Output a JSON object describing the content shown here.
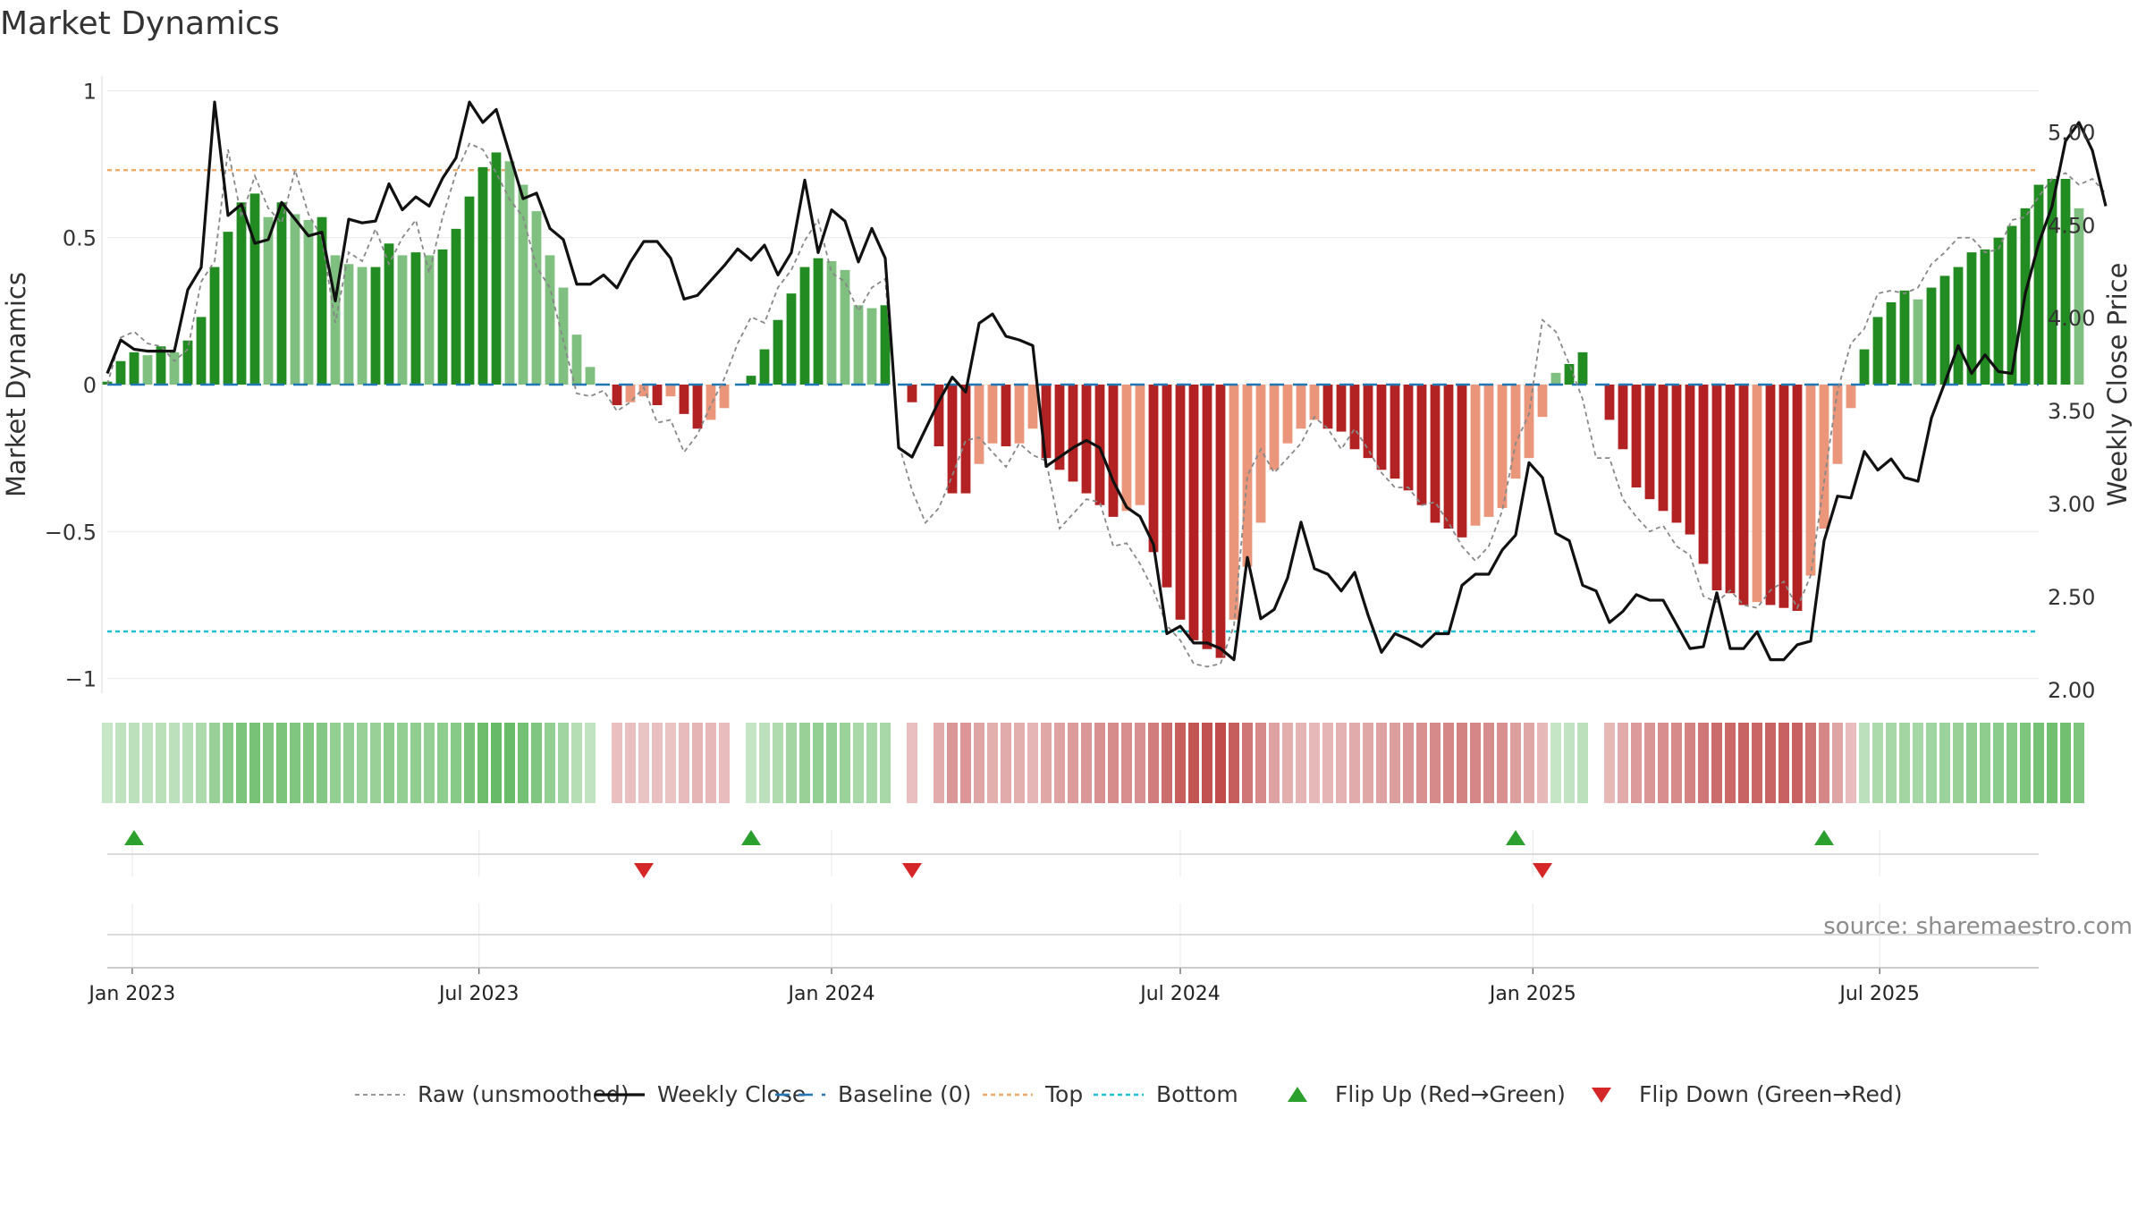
{
  "chart_data": {
    "type": "bar",
    "title": "Market Dynamics",
    "ylabel_left": "Market Dynamics",
    "ylabel_right": "Weekly Close Price",
    "source": "source: sharemaestro.com",
    "ylim_left": [
      -1.05,
      1.05
    ],
    "ylim_right": [
      1.98,
      5.3
    ],
    "yticks_left": [
      {
        "value": 1,
        "label": "1"
      },
      {
        "value": 0.5,
        "label": "0.5"
      },
      {
        "value": 0,
        "label": "0"
      },
      {
        "value": -0.5,
        "label": "−0.5"
      },
      {
        "value": -1,
        "label": "−1"
      }
    ],
    "yticks_right": [
      {
        "value": 5.0,
        "label": "5.00"
      },
      {
        "value": 4.5,
        "label": "4.50"
      },
      {
        "value": 4.0,
        "label": "4.00"
      },
      {
        "value": 3.5,
        "label": "3.50"
      },
      {
        "value": 3.0,
        "label": "3.00"
      },
      {
        "value": 2.5,
        "label": "2.50"
      },
      {
        "value": 2.0,
        "label": "2.00"
      }
    ],
    "x_start": "2022-12-19",
    "xlim": [
      "2022-12-19",
      "2025-09-22"
    ],
    "xticks": [
      {
        "date": "2023-01-01",
        "label": "Jan 2023"
      },
      {
        "date": "2023-07-01",
        "label": "Jul 2023"
      },
      {
        "date": "2024-01-01",
        "label": "Jan 2024"
      },
      {
        "date": "2024-07-01",
        "label": "Jul 2024"
      },
      {
        "date": "2025-01-01",
        "label": "Jan 2025"
      },
      {
        "date": "2025-07-01",
        "label": "Jul 2025"
      }
    ],
    "top_line": 0.73,
    "bottom_line": -0.84,
    "baseline": 0,
    "colors": {
      "strong_green": "#228b22",
      "light_green": "#7fbf7f",
      "strong_red": "#b22222",
      "light_red": "#e9967a",
      "top": "#f0a868",
      "bottom": "#1fc0d0",
      "baseline": "#1f77b4",
      "close": "#111111",
      "raw": "#888888",
      "flip_up": "#2ca02c",
      "flip_down": "#d62728"
    },
    "series": [
      {
        "name": "Market Dynamics",
        "values": [
          0.01,
          0.08,
          0.11,
          0.1,
          0.13,
          0.11,
          0.15,
          0.23,
          0.4,
          0.52,
          0.62,
          0.65,
          0.57,
          0.62,
          0.58,
          0.56,
          0.57,
          0.44,
          0.41,
          0.4,
          0.4,
          0.48,
          0.44,
          0.45,
          0.44,
          0.46,
          0.53,
          0.64,
          0.74,
          0.79,
          0.76,
          0.68,
          0.59,
          0.44,
          0.33,
          0.17,
          0.06,
          0.0,
          -0.07,
          -0.06,
          -0.04,
          -0.07,
          -0.04,
          -0.1,
          -0.15,
          -0.12,
          -0.08,
          0.0,
          0.03,
          0.12,
          0.22,
          0.31,
          0.4,
          0.43,
          0.42,
          0.39,
          0.27,
          0.26,
          0.27,
          0.0,
          -0.06,
          0.0,
          -0.21,
          -0.37,
          -0.37,
          -0.27,
          -0.2,
          -0.21,
          -0.2,
          -0.15,
          -0.25,
          -0.29,
          -0.33,
          -0.37,
          -0.41,
          -0.45,
          -0.43,
          -0.41,
          -0.57,
          -0.69,
          -0.8,
          -0.87,
          -0.9,
          -0.93,
          -0.8,
          -0.62,
          -0.47,
          -0.29,
          -0.2,
          -0.15,
          -0.12,
          -0.15,
          -0.16,
          -0.22,
          -0.25,
          -0.29,
          -0.32,
          -0.36,
          -0.41,
          -0.47,
          -0.49,
          -0.52,
          -0.48,
          -0.45,
          -0.42,
          -0.32,
          -0.25,
          -0.11,
          0.04,
          0.07,
          0.11,
          0.0,
          -0.12,
          -0.22,
          -0.35,
          -0.39,
          -0.43,
          -0.47,
          -0.51,
          -0.61,
          -0.7,
          -0.71,
          -0.75,
          -0.74,
          -0.75,
          -0.76,
          -0.77,
          -0.65,
          -0.49,
          -0.27,
          -0.08,
          0.12,
          0.23,
          0.28,
          0.32,
          0.29,
          0.33,
          0.37,
          0.4,
          0.45,
          0.46,
          0.5,
          0.54,
          0.6,
          0.68,
          0.7,
          0.7,
          0.6
        ]
      },
      {
        "name": "Raw (unsmoothed)",
        "values": [
          0.0,
          0.16,
          0.18,
          0.14,
          0.13,
          0.08,
          0.12,
          0.35,
          0.42,
          0.8,
          0.57,
          0.71,
          0.6,
          0.55,
          0.73,
          0.58,
          0.5,
          0.21,
          0.45,
          0.42,
          0.53,
          0.41,
          0.5,
          0.56,
          0.38,
          0.57,
          0.72,
          0.82,
          0.8,
          0.72,
          0.63,
          0.57,
          0.4,
          0.33,
          0.15,
          -0.03,
          -0.04,
          -0.02,
          -0.09,
          -0.06,
          -0.01,
          -0.13,
          -0.12,
          -0.23,
          -0.17,
          -0.07,
          0.02,
          0.14,
          0.23,
          0.21,
          0.33,
          0.39,
          0.49,
          0.56,
          0.38,
          0.35,
          0.25,
          0.33,
          0.36,
          -0.2,
          -0.36,
          -0.47,
          -0.42,
          -0.31,
          -0.19,
          -0.18,
          -0.23,
          -0.28,
          -0.2,
          -0.24,
          -0.26,
          -0.49,
          -0.44,
          -0.39,
          -0.4,
          -0.55,
          -0.54,
          -0.61,
          -0.7,
          -0.82,
          -0.87,
          -0.95,
          -0.96,
          -0.95,
          -0.82,
          -0.31,
          -0.22,
          -0.3,
          -0.25,
          -0.2,
          -0.11,
          -0.15,
          -0.22,
          -0.15,
          -0.22,
          -0.3,
          -0.35,
          -0.35,
          -0.41,
          -0.4,
          -0.47,
          -0.55,
          -0.6,
          -0.55,
          -0.43,
          -0.2,
          -0.1,
          0.22,
          0.18,
          0.07,
          -0.05,
          -0.25,
          -0.25,
          -0.39,
          -0.45,
          -0.5,
          -0.48,
          -0.55,
          -0.58,
          -0.72,
          -0.74,
          -0.7,
          -0.75,
          -0.76,
          -0.7,
          -0.67,
          -0.76,
          -0.65,
          -0.33,
          -0.02,
          0.14,
          0.19,
          0.31,
          0.32,
          0.31,
          0.33,
          0.41,
          0.45,
          0.5,
          0.5,
          0.45,
          0.46,
          0.56,
          0.57,
          0.64,
          0.7,
          0.72,
          0.68,
          0.7,
          0.65
        ]
      },
      {
        "name": "Weekly Close",
        "values": [
          3.7,
          3.88,
          3.83,
          3.82,
          3.82,
          3.82,
          4.15,
          4.27,
          5.16,
          4.55,
          4.61,
          4.4,
          4.42,
          4.62,
          4.53,
          4.44,
          4.46,
          4.09,
          4.53,
          4.51,
          4.52,
          4.72,
          4.58,
          4.65,
          4.6,
          4.75,
          4.86,
          5.16,
          5.05,
          5.12,
          4.88,
          4.64,
          4.67,
          4.48,
          4.42,
          4.18,
          4.18,
          4.23,
          4.16,
          4.3,
          4.41,
          4.41,
          4.32,
          4.1,
          4.12,
          4.2,
          4.28,
          4.37,
          4.31,
          4.39,
          4.23,
          4.35,
          4.74,
          4.35,
          4.58,
          4.52,
          4.3,
          4.48,
          4.32,
          3.3,
          3.25,
          3.4,
          3.55,
          3.68,
          3.6,
          3.97,
          4.02,
          3.9,
          3.88,
          3.85,
          3.2,
          3.25,
          3.3,
          3.34,
          3.3,
          3.12,
          2.98,
          2.93,
          2.78,
          2.3,
          2.34,
          2.25,
          2.25,
          2.22,
          2.16,
          2.71,
          2.38,
          2.43,
          2.6,
          2.9,
          2.65,
          2.62,
          2.53,
          2.63,
          2.4,
          2.2,
          2.3,
          2.27,
          2.23,
          2.3,
          2.3,
          2.56,
          2.62,
          2.62,
          2.75,
          2.83,
          3.22,
          3.14,
          2.84,
          2.8,
          2.56,
          2.53,
          2.36,
          2.42,
          2.51,
          2.48,
          2.48,
          2.35,
          2.22,
          2.23,
          2.52,
          2.22,
          2.22,
          2.31,
          2.16,
          2.16,
          2.24,
          2.26,
          2.8,
          3.04,
          3.03,
          3.28,
          3.18,
          3.24,
          3.14,
          3.12,
          3.46,
          3.65,
          3.85,
          3.7,
          3.8,
          3.71,
          3.7,
          4.13,
          4.4,
          4.6,
          4.95,
          5.05,
          4.9,
          4.6
        ]
      }
    ],
    "flips": [
      {
        "date": "2023-01-02",
        "direction": "up"
      },
      {
        "date": "2023-09-25",
        "direction": "down"
      },
      {
        "date": "2023-11-20",
        "direction": "up"
      },
      {
        "date": "2024-02-12",
        "direction": "down"
      },
      {
        "date": "2024-12-23",
        "direction": "up"
      },
      {
        "date": "2025-01-06",
        "direction": "down"
      },
      {
        "date": "2025-06-02",
        "direction": "up"
      }
    ],
    "legend": [
      {
        "label": "Raw (unsmoothed)",
        "style": "raw"
      },
      {
        "label": "Weekly Close",
        "style": "close"
      },
      {
        "label": "Baseline (0)",
        "style": "baseline"
      },
      {
        "label": "Top",
        "style": "top"
      },
      {
        "label": "Bottom",
        "style": "bottom"
      },
      {
        "label": "Flip Up (Red→Green)",
        "style": "up"
      },
      {
        "label": "Flip Down (Green→Red)",
        "style": "down"
      }
    ],
    "legend_position": "bottom-center"
  }
}
